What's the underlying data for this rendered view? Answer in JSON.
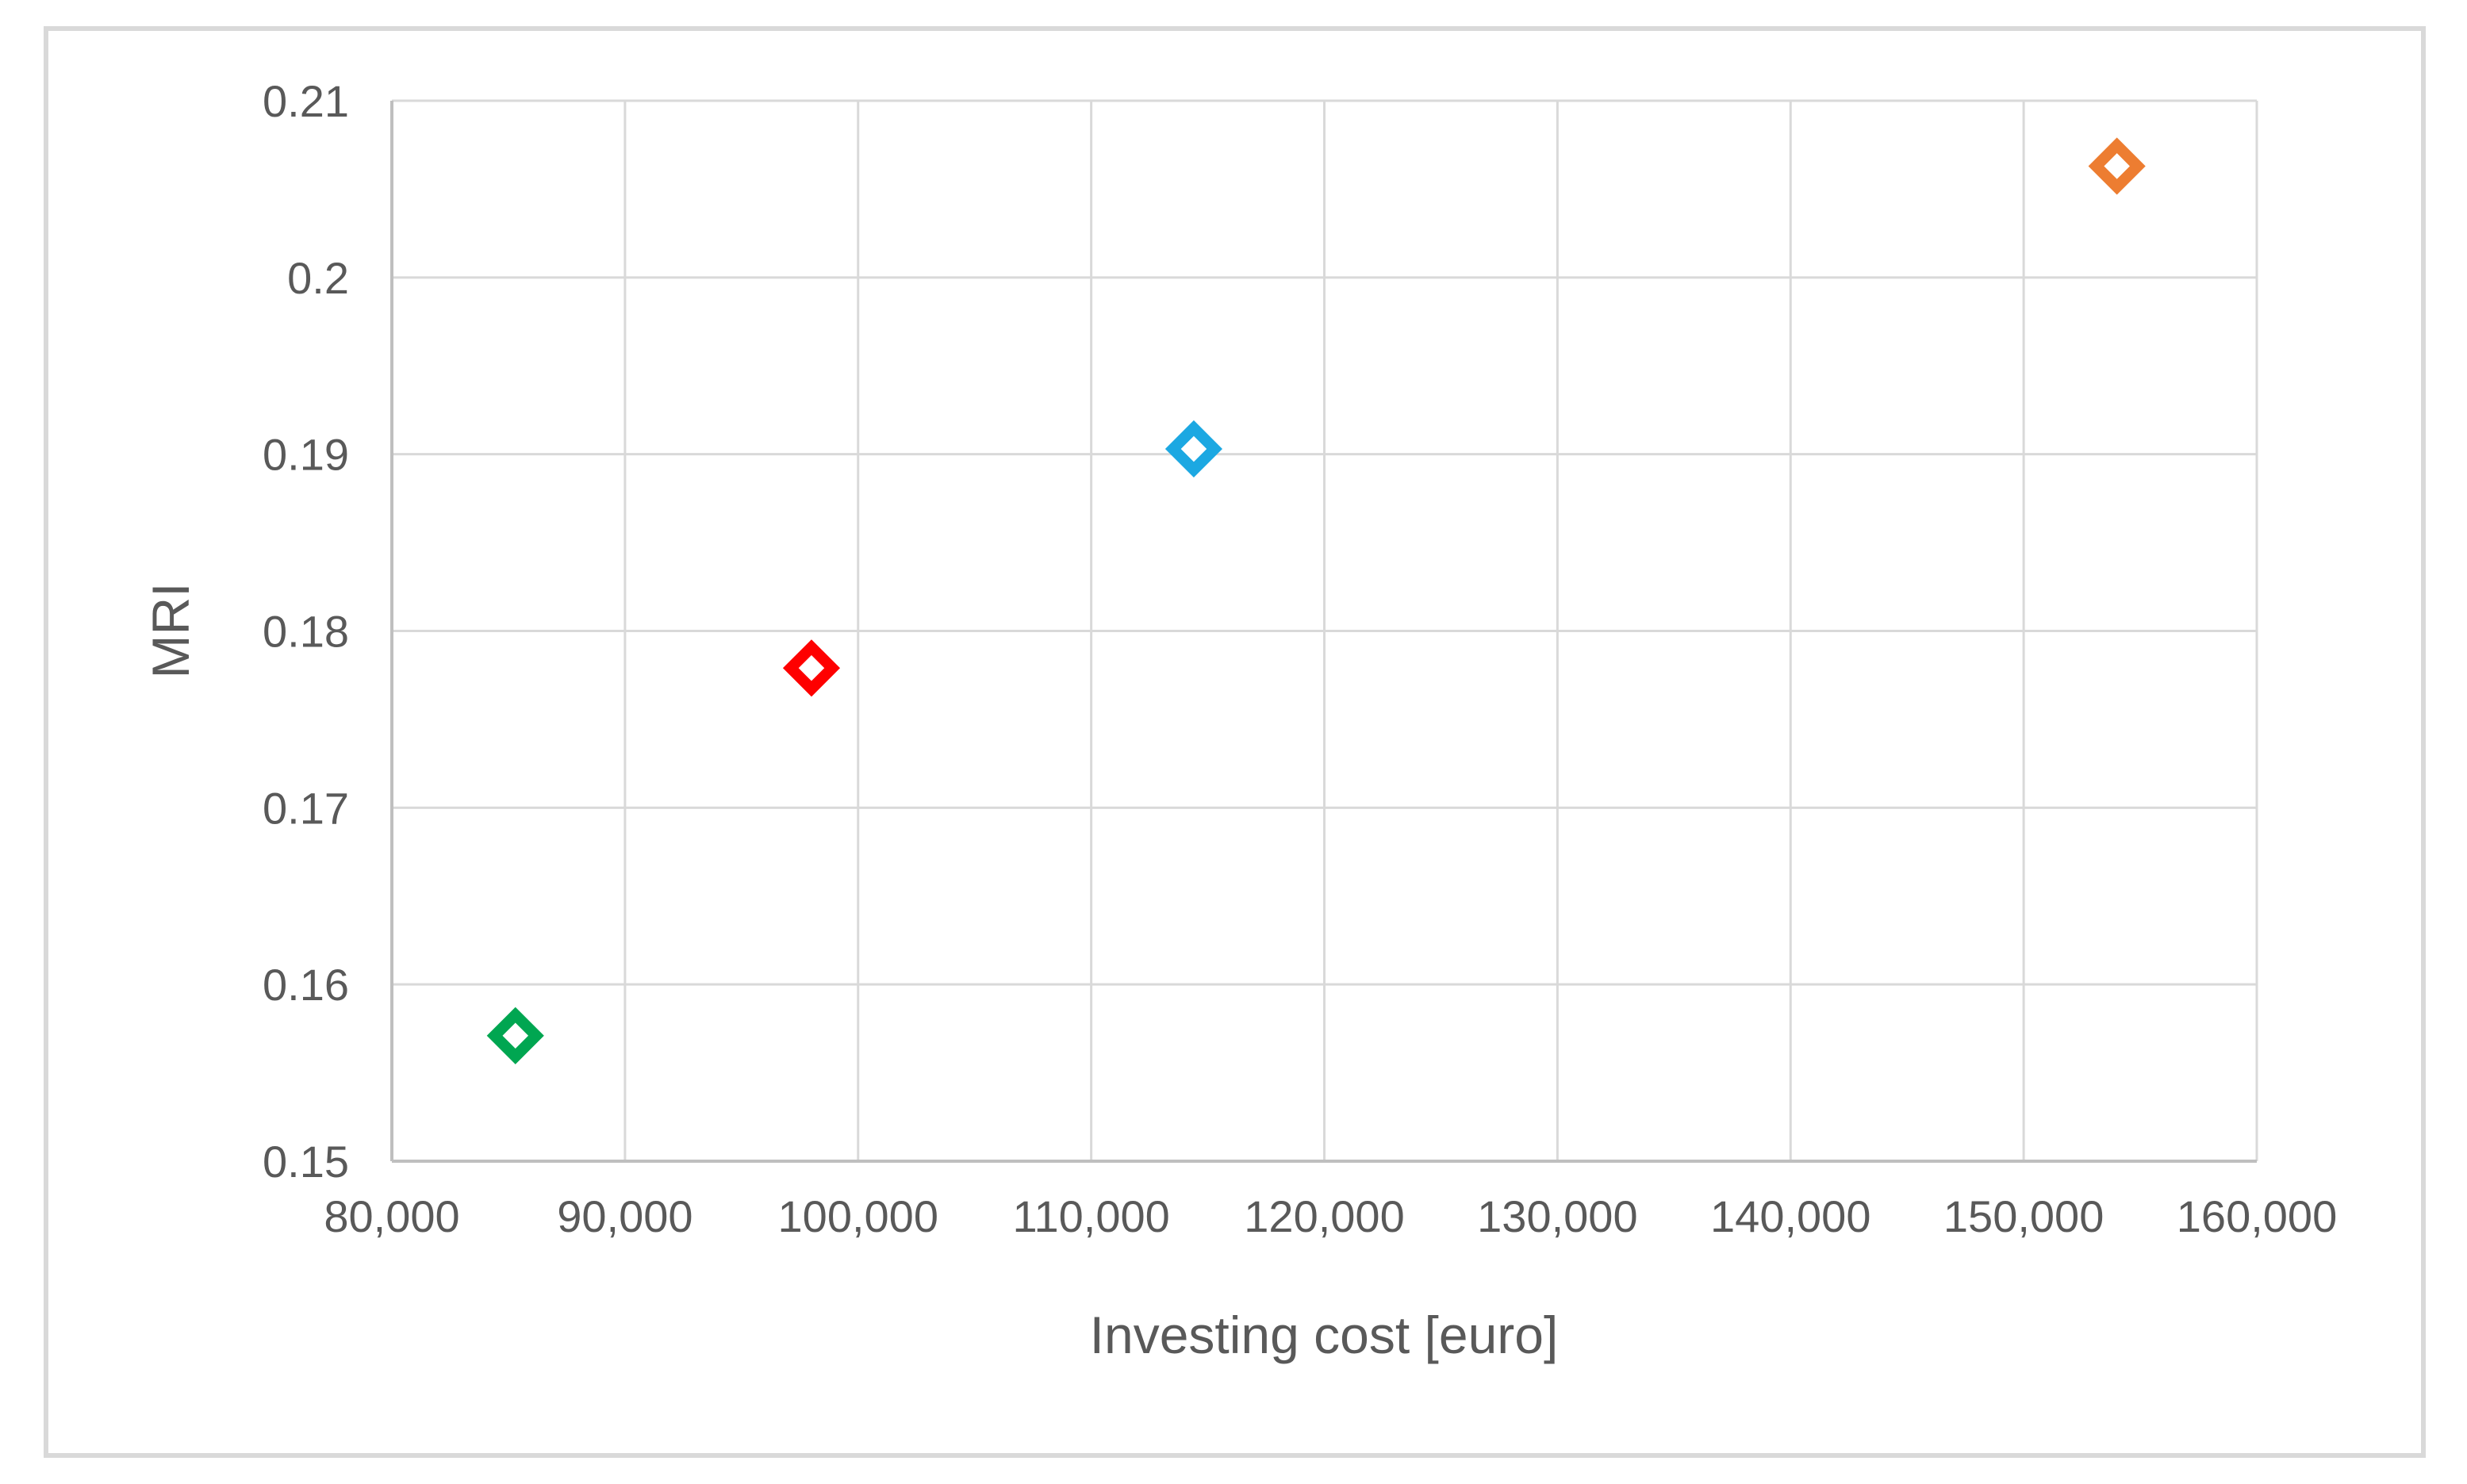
{
  "window": {
    "background_color": "#FFFFFF",
    "frame_border_color": "#D9D9D9"
  },
  "chart_data": {
    "type": "scatter",
    "title": "",
    "xlabel": "Investing cost [euro]",
    "ylabel": "MRI",
    "xlim": [
      80000,
      160000
    ],
    "x_tick_interval": 10000,
    "x_tick_labels": [
      "80,000",
      "90,000",
      "100,000",
      "110,000",
      "120,000",
      "130,000",
      "140,000",
      "150,000",
      "160,000"
    ],
    "ylim": [
      0.15,
      0.21
    ],
    "y_tick_interval": 0.01,
    "y_tick_labels": [
      "0.15",
      "0.16",
      "0.17",
      "0.18",
      "0.19",
      "0.2",
      "0.21"
    ],
    "grid": true,
    "legend_position": "none",
    "marker_style": "open-diamond",
    "gridline_color": "#D9D9D9",
    "axis_line_color": "#BFBFBF",
    "tick_label_color": "#595959",
    "axis_title_color": "#595959",
    "series": [
      {
        "name": "green",
        "color": "#00A651",
        "points": [
          {
            "x": 85300,
            "y": 0.1571
          }
        ]
      },
      {
        "name": "red",
        "color": "#FE0000",
        "points": [
          {
            "x": 98000,
            "y": 0.1779
          }
        ]
      },
      {
        "name": "blue",
        "color": "#1CA8E2",
        "points": [
          {
            "x": 114400,
            "y": 0.1903
          }
        ]
      },
      {
        "name": "orange",
        "color": "#ED7D31",
        "points": [
          {
            "x": 154000,
            "y": 0.2063
          }
        ]
      }
    ]
  }
}
